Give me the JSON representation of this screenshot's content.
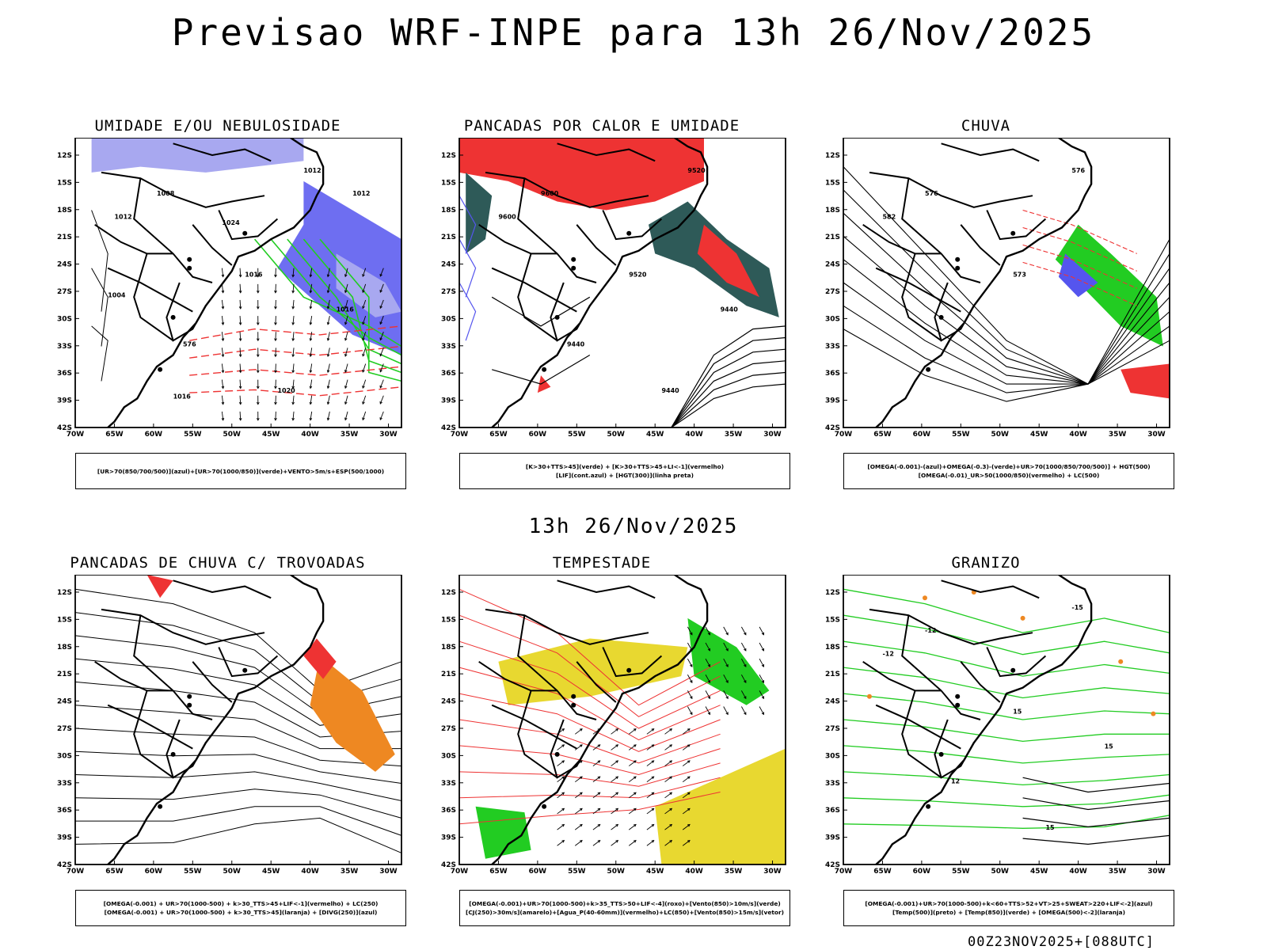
{
  "header": {
    "title": "Previsao WRF-INPE  para 13h 26/Nov/2025"
  },
  "middle": {
    "subtitle": "13h 26/Nov/2025"
  },
  "footer": {
    "run": "00Z23NOV2025+[088UTC]"
  },
  "axes": {
    "lat_labels": [
      "12S",
      "15S",
      "18S",
      "21S",
      "24S",
      "27S",
      "30S",
      "33S",
      "36S",
      "39S",
      "42S"
    ],
    "lon_labels": [
      "70W",
      "65W",
      "60W",
      "55W",
      "50W",
      "45W",
      "40W",
      "35W",
      "30W"
    ]
  },
  "colors": {
    "blue": "#5555ee",
    "lightblue": "#a8a8f0",
    "green": "#22cc22",
    "red": "#ee3333",
    "darkteal": "#2e5a58",
    "orange": "#ee8822",
    "yellow": "#e8d830",
    "purple": "#9922cc"
  },
  "panels": [
    {
      "id": "umidade",
      "title": "UMIDADE E/OU NEBULOSIDADE",
      "legend": [
        "[UR>70(850/700/500)](azul)+[UR>70(1000/850)](verde)+VENTO>5m/s+ESP(500/1000)"
      ],
      "contour_labels": [
        "1012",
        "1008",
        "1012",
        "1016",
        "576",
        "1020",
        "1016",
        "1004",
        "1024",
        "1012",
        "1016"
      ]
    },
    {
      "id": "pancadas-calor",
      "title": "PANCADAS POR CALOR E UMIDADE",
      "legend": [
        "[K>30+TTS>45](verde) + [K>30+TTS>45+LI<-1](vermelho)",
        "[LIF](cont.azul) + [HGT(300)](linha preta)"
      ],
      "contour_labels": [
        "9600",
        "9600",
        "9520",
        "9520",
        "9440",
        "9440",
        "9440"
      ]
    },
    {
      "id": "chuva",
      "title": "CHUVA",
      "legend": [
        "[OMEGA(-0.001)-(azul)+OMEGA(-0.3)-(verde)+UR>70(1000/850/700/500)] + HGT(500)",
        "[OMEGA(-0.01)_UR>50(1000/850)(vermelho) + LC(500)"
      ],
      "contour_labels": [
        "582",
        "576",
        "576",
        "573"
      ]
    },
    {
      "id": "pancadas-trovoadas",
      "title": "PANCADAS DE CHUVA C/ TROVOADAS",
      "legend": [
        "[OMEGA(-0.001) + UR>70(1000-500) + k>30_TTS>45+LIF<-1](vermelho) + LC(250)",
        "[OMEGA(-0.001) + UR>70(1000-500) + k>30_TTS>45](laranja) + [DIVG(250)](azul)"
      ],
      "contour_labels": []
    },
    {
      "id": "tempestade",
      "title": "TEMPESTADE",
      "legend": [
        "[OMEGA(-0.001)+UR>70(1000-500)+k>35_TTS>50+LIF<-4](roxo)+[Vento(850)>10m/s](verde)",
        "[CJ(250)>30m/s](amarelo)+[Agua_P(40-60mm)](vermelho)+LC(850)+[Vento(850)>15m/s](vetor)"
      ],
      "contour_labels": []
    },
    {
      "id": "granizo",
      "title": "GRANIZO",
      "legend": [
        "[OMEGA(-0.001)+UR>70(1000-500)+k<60+TTS>52+VT>25+SWEAT>220+LIF<-2](azul)",
        "[Temp(500)](preto) + [Temp(850)](verde) + [OMEGA(500)<-2](laranja)"
      ],
      "contour_labels": [
        "-12",
        "-12",
        "-15",
        "15",
        "12",
        "15",
        "15"
      ]
    }
  ]
}
